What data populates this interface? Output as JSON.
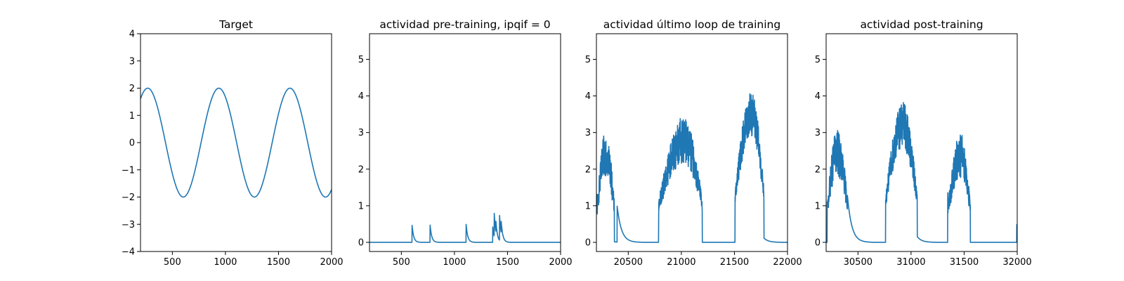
{
  "figure": {
    "background": "#ffffff",
    "line_color": "#1f77b4"
  },
  "chart_data": [
    {
      "type": "line",
      "title": "Target",
      "xlabel": "",
      "ylabel": "",
      "xlim": [
        200,
        2000
      ],
      "ylim": [
        -4,
        4
      ],
      "xticks": [
        500,
        1000,
        1500,
        2000
      ],
      "xtick_labels": [
        "500",
        "1000",
        "1500",
        "2000"
      ],
      "yticks": [
        -4,
        -3,
        -2,
        -1,
        0,
        1,
        2,
        3,
        4
      ],
      "ytick_labels": [
        "−4",
        "−3",
        "−2",
        "−1",
        "0",
        "1",
        "2",
        "3",
        "4"
      ],
      "grid": false,
      "legend": "none",
      "series": [
        {
          "signal": "sine",
          "amplitude": 2,
          "period": 670,
          "first_peak_x": 268,
          "x": [
            200,
            268,
            603,
            938,
            1273,
            1608,
            1943,
            2000
          ],
          "y": [
            1.6,
            2.0,
            -2.0,
            2.0,
            -2.0,
            2.0,
            -2.0,
            -1.73
          ]
        }
      ]
    },
    {
      "type": "line",
      "title": "actividad pre-training, ipqif = 0",
      "xlabel": "",
      "ylabel": "",
      "xlim": [
        200,
        2000
      ],
      "ylim": [
        -0.25,
        5.7
      ],
      "xticks": [
        500,
        1000,
        1500,
        2000
      ],
      "xtick_labels": [
        "500",
        "1000",
        "1500",
        "2000"
      ],
      "yticks": [
        0,
        1,
        2,
        3,
        4,
        5
      ],
      "ytick_labels": [
        "0",
        "1",
        "2",
        "3",
        "4",
        "5"
      ],
      "grid": false,
      "legend": "none",
      "series": [
        {
          "signal": "spikes",
          "baseline": 0,
          "decay": 15,
          "spikes": [
            {
              "x": 600,
              "y": 0.5
            },
            {
              "x": 770,
              "y": 0.5
            },
            {
              "x": 1110,
              "y": 0.5
            },
            {
              "x": 1360,
              "y": 0.45
            },
            {
              "x": 1375,
              "y": 0.8
            },
            {
              "x": 1390,
              "y": 0.6
            },
            {
              "x": 1425,
              "y": 0.75
            },
            {
              "x": 1440,
              "y": 0.6
            }
          ]
        }
      ]
    },
    {
      "type": "line",
      "title": "actividad último loop de training",
      "xlabel": "",
      "ylabel": "",
      "xlim": [
        20200,
        22000
      ],
      "ylim": [
        -0.25,
        5.7
      ],
      "xticks": [
        20500,
        21000,
        21500,
        22000
      ],
      "xtick_labels": [
        "20500",
        "21000",
        "21500",
        "22000"
      ],
      "yticks": [
        0,
        1,
        2,
        3,
        4,
        5
      ],
      "ytick_labels": [
        "0",
        "1",
        "2",
        "3",
        "4",
        "5"
      ],
      "grid": false,
      "legend": "none",
      "series": [
        {
          "signal": "noisy_bumps",
          "baseline": 0,
          "decay": 40,
          "bumps": [
            {
              "start": 20205,
              "peak_x": 20290,
              "peak_y": 2.45,
              "end": 20370
            },
            {
              "start": 20785,
              "peak_x": 21020,
              "peak_y": 2.8,
              "end": 21200
            },
            {
              "start": 21505,
              "peak_x": 21660,
              "peak_y": 3.5,
              "end": 21780
            }
          ],
          "extra_spikes": [
            {
              "x": 20170,
              "y": 2.0
            },
            {
              "x": 20395,
              "y": 1.0
            }
          ]
        }
      ]
    },
    {
      "type": "line",
      "title": "actividad post-training",
      "xlabel": "",
      "ylabel": "",
      "xlim": [
        30200,
        32000
      ],
      "ylim": [
        -0.25,
        5.7
      ],
      "xticks": [
        30500,
        31000,
        31500,
        32000
      ],
      "xtick_labels": [
        "30500",
        "31000",
        "31500",
        "32000"
      ],
      "yticks": [
        0,
        1,
        2,
        3,
        4,
        5
      ],
      "ytick_labels": [
        "0",
        "1",
        "2",
        "3",
        "4",
        "5"
      ],
      "grid": false,
      "legend": "none",
      "series": [
        {
          "signal": "noisy_bumps",
          "baseline": 0,
          "decay": 40,
          "bumps": [
            {
              "start": 30210,
              "peak_x": 30300,
              "peak_y": 2.45,
              "end": 30410
            },
            {
              "start": 30760,
              "peak_x": 30920,
              "peak_y": 3.2,
              "end": 31060
            },
            {
              "start": 31345,
              "peak_x": 31470,
              "peak_y": 2.4,
              "end": 31560
            }
          ],
          "extra_spikes": [
            {
              "x": 30400,
              "y": 1.3
            },
            {
              "x": 31995,
              "y": 0.5
            }
          ]
        }
      ]
    }
  ]
}
